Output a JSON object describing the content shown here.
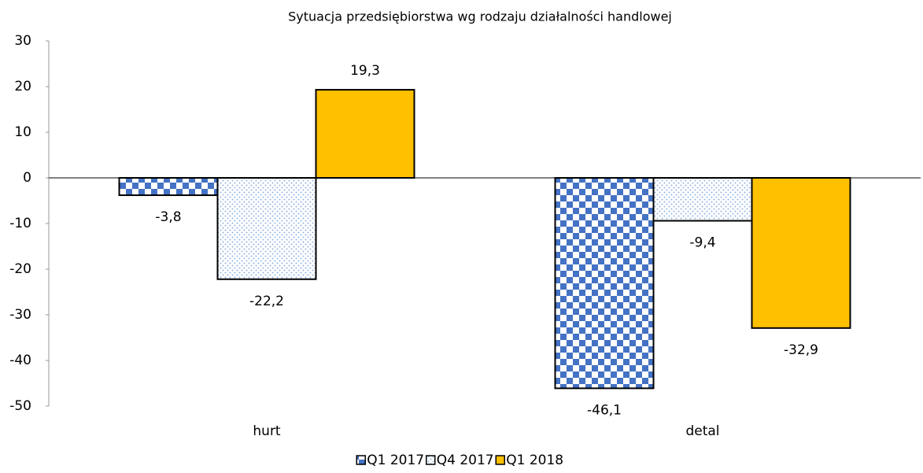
{
  "chart_data": {
    "type": "bar",
    "title": "Sytuacja przedsiębiorstwa wg rodzaju działalności handlowej",
    "categories": [
      "hurt",
      "detal"
    ],
    "series": [
      {
        "name": "Q1 2017",
        "color": "#4472c4",
        "pattern": "checker",
        "values": [
          -3.8,
          -46.1
        ],
        "value_labels": [
          "-3,8",
          "-46,1"
        ]
      },
      {
        "name": "Q4 2017",
        "color": "#8fb4e3",
        "pattern": "dots",
        "values": [
          -22.2,
          -9.4
        ],
        "value_labels": [
          "-22,2",
          "-9,4"
        ]
      },
      {
        "name": "Q1 2018",
        "color": "#ffc000",
        "pattern": "solid",
        "values": [
          19.3,
          -32.9
        ],
        "value_labels": [
          "19,3",
          "-32,9"
        ]
      }
    ],
    "ylim": [
      -50,
      30
    ],
    "yticks": [
      -50,
      -40,
      -30,
      -20,
      -10,
      0,
      10,
      20,
      30
    ],
    "grid": false,
    "legend": "bottom"
  }
}
